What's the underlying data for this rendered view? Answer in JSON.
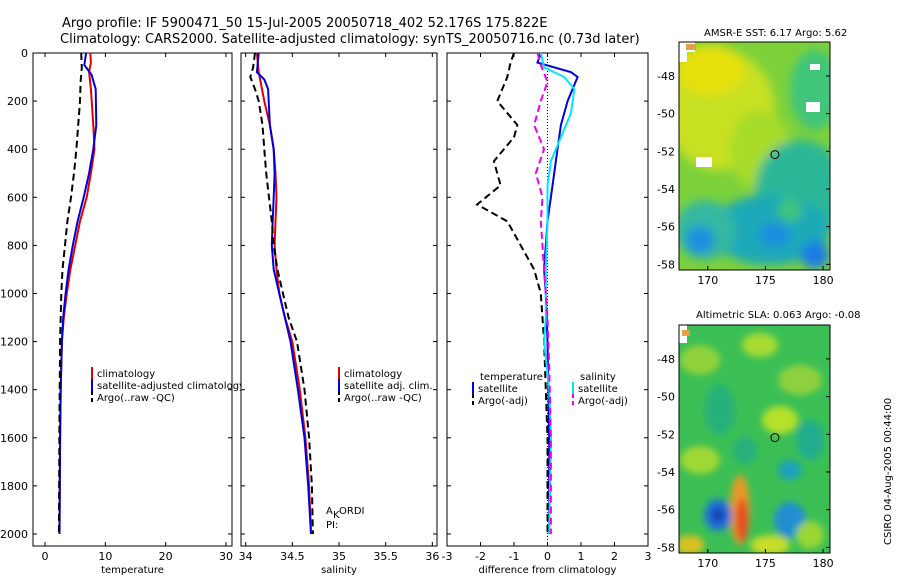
{
  "header": {
    "line1": "Argo profile: IF 5900471_50 15-Jul-2005 20050718_402 52.176S 175.822E",
    "line2": "Climatology: CARS2000. Satellite-adjusted climatology: synTS_20050716.nc (0.73d later)"
  },
  "colors": {
    "red": "#e00000",
    "blue": "#0000dd",
    "black": "#000000",
    "cyan": "#00e5ff",
    "magenta": "#ee00ee"
  },
  "chart_data": [
    {
      "type": "line",
      "id": "temperature",
      "xlabel": "temperature",
      "xlim": [
        -2,
        31
      ],
      "ylim": [
        2050,
        0
      ],
      "xticks": [
        0,
        10,
        20,
        30
      ],
      "yticks": [
        0,
        200,
        400,
        600,
        800,
        1000,
        1200,
        1400,
        1600,
        1800,
        2000
      ],
      "legend": [
        "climatology",
        "satellite-adjusted climatology",
        "Argo(..raw -QC)"
      ],
      "series": [
        {
          "name": "climatology",
          "color": "red",
          "dash": false,
          "x": [
            7.5,
            7.6,
            7.3,
            7.6,
            8.0,
            8.2,
            7.6,
            6.9,
            5.8,
            5.0,
            4.2,
            3.6,
            3.1,
            2.8,
            2.6,
            2.5,
            2.4
          ],
          "y": [
            0,
            40,
            80,
            150,
            300,
            400,
            500,
            600,
            700,
            800,
            900,
            1000,
            1100,
            1200,
            1400,
            1600,
            2000
          ]
        },
        {
          "name": "satellite-adjusted climatology",
          "color": "blue",
          "dash": false,
          "x": [
            6.8,
            6.5,
            7.7,
            8.4,
            8.5,
            8.0,
            7.3,
            6.4,
            5.4,
            4.6,
            3.9,
            3.4,
            3.0,
            2.8,
            2.6,
            2.5,
            2.4
          ],
          "y": [
            0,
            50,
            90,
            150,
            300,
            400,
            500,
            600,
            700,
            800,
            900,
            1000,
            1100,
            1200,
            1400,
            1600,
            2000
          ]
        },
        {
          "name": "Argo(..raw -QC)",
          "color": "black",
          "dash": true,
          "x": [
            6.0,
            6.1,
            5.9,
            5.8,
            5.5,
            5.2,
            4.8,
            4.3,
            3.7,
            3.3,
            2.9,
            2.7,
            2.5,
            2.4,
            2.3
          ],
          "y": [
            0,
            60,
            120,
            200,
            300,
            400,
            500,
            600,
            700,
            800,
            900,
            1000,
            1200,
            1500,
            2000
          ]
        }
      ]
    },
    {
      "type": "line",
      "id": "salinity",
      "xlabel": "salinity",
      "xlim": [
        33.95,
        36.05
      ],
      "ylim": [
        2050,
        0
      ],
      "xticks": [
        34,
        34.5,
        35,
        35.5,
        36
      ],
      "legend": [
        "climatology",
        "satellite adj. clim.",
        "Argo(..raw -QC)"
      ],
      "annotation": [
        "A",
        "K",
        "ORDI",
        "PI:"
      ],
      "series": [
        {
          "name": "climatology",
          "color": "red",
          "dash": false,
          "x": [
            34.12,
            34.13,
            34.14,
            34.16,
            34.2,
            34.26,
            34.3,
            34.32,
            34.33,
            34.32,
            34.31,
            34.33,
            34.36,
            34.42,
            34.5,
            34.58,
            34.64,
            34.68,
            34.7
          ],
          "y": [
            0,
            40,
            80,
            120,
            200,
            300,
            400,
            500,
            600,
            700,
            800,
            900,
            1000,
            1100,
            1200,
            1400,
            1600,
            1800,
            2000
          ]
        },
        {
          "name": "satellite adj. clim.",
          "color": "blue",
          "dash": false,
          "x": [
            34.14,
            34.12,
            34.2,
            34.24,
            34.26,
            34.3,
            34.31,
            34.3,
            34.29,
            34.28,
            34.3,
            34.36,
            34.42,
            34.48,
            34.56,
            34.63,
            34.67,
            34.7
          ],
          "y": [
            0,
            80,
            110,
            150,
            300,
            400,
            500,
            600,
            700,
            800,
            900,
            1000,
            1100,
            1200,
            1400,
            1600,
            1800,
            2000
          ]
        },
        {
          "name": "Argo(..raw -QC)",
          "color": "black",
          "dash": true,
          "x": [
            34.1,
            34.08,
            34.05,
            34.1,
            34.14,
            34.18,
            34.2,
            34.22,
            34.25,
            34.28,
            34.3,
            34.34,
            34.4,
            34.46,
            34.55,
            34.63,
            34.68,
            34.71,
            34.72
          ],
          "y": [
            0,
            60,
            100,
            150,
            200,
            300,
            400,
            500,
            600,
            700,
            800,
            900,
            1000,
            1100,
            1200,
            1400,
            1600,
            1800,
            2000
          ]
        }
      ]
    },
    {
      "type": "line",
      "id": "difference",
      "xlabel": "difference from climatology",
      "xlim": [
        -3,
        3
      ],
      "ylim": [
        2050,
        0
      ],
      "xticks": [
        -3,
        -2,
        -1,
        0,
        1,
        2,
        3
      ],
      "legend_left_title": "temperature",
      "legend_left": [
        "satellite",
        "Argo(-adj)"
      ],
      "legend_right_title": "salinity",
      "legend_right": [
        "satellite",
        "Argo(-adj)"
      ],
      "series": [
        {
          "name": "temperature satellite",
          "color": "blue",
          "dash": false,
          "x": [
            -0.2,
            -0.3,
            0.7,
            0.9,
            0.6,
            0.4,
            0.3,
            0.2,
            0.1,
            0.0,
            -0.05,
            -0.1,
            -0.05,
            0.0,
            0.05,
            0.05
          ],
          "y": [
            0,
            40,
            80,
            100,
            200,
            300,
            400,
            500,
            600,
            700,
            800,
            900,
            1000,
            1200,
            1600,
            2000
          ]
        },
        {
          "name": "temperature Argo(-adj)",
          "color": "black",
          "dash": true,
          "x": [
            -1.0,
            -1.1,
            -1.2,
            -1.5,
            -0.9,
            -1.0,
            -1.6,
            -1.4,
            -2.1,
            -1.2,
            -0.8,
            -0.4,
            -0.2,
            -0.1,
            0.0,
            0.0
          ],
          "y": [
            0,
            40,
            100,
            200,
            300,
            350,
            450,
            550,
            630,
            700,
            800,
            900,
            1000,
            1200,
            1600,
            2000
          ]
        },
        {
          "name": "salinity satellite",
          "color": "cyan",
          "dash": false,
          "x": [
            -0.2,
            -0.1,
            0.5,
            0.8,
            0.7,
            0.4,
            0.1,
            0.0,
            0.0,
            -0.05,
            -0.05,
            -0.1,
            0.05,
            0.1,
            0.05
          ],
          "y": [
            0,
            60,
            100,
            150,
            250,
            350,
            450,
            550,
            700,
            900,
            1100,
            1200,
            1400,
            1600,
            2000
          ]
        },
        {
          "name": "salinity Argo(-adj)",
          "color": "magenta",
          "dash": true,
          "x": [
            -0.3,
            -0.2,
            0.0,
            -0.2,
            -0.4,
            -0.1,
            -0.35,
            -0.15,
            -0.2,
            -0.1,
            0.0,
            0.05,
            0.1,
            0.1
          ],
          "y": [
            0,
            50,
            120,
            200,
            300,
            400,
            500,
            600,
            700,
            900,
            1100,
            1300,
            1600,
            2000
          ]
        }
      ]
    },
    {
      "type": "heatmap",
      "id": "sst",
      "title": "AMSR-E SST: 6.17 Argo: 5.62",
      "xlim": [
        167.5,
        185
      ],
      "ylim": [
        -58.3,
        -46.2
      ],
      "xticks": [
        170,
        175,
        180
      ],
      "yticks": [
        -48,
        -50,
        -52,
        -54,
        -56,
        -58
      ],
      "marker": {
        "lon": 175.822,
        "lat": -52.176
      }
    },
    {
      "type": "heatmap",
      "id": "sla",
      "title": "Altimetric SLA: 0.063 Argo: -0.08",
      "xlim": [
        167.5,
        185
      ],
      "ylim": [
        -58.3,
        -46.2
      ],
      "xticks": [
        170,
        175,
        180
      ],
      "yticks": [
        -48,
        -50,
        -52,
        -54,
        -56,
        -58
      ],
      "marker": {
        "lon": 175.822,
        "lat": -52.176
      }
    }
  ],
  "footer": {
    "stamp": "CSIRO 04-Aug-2005 00:44:00"
  }
}
